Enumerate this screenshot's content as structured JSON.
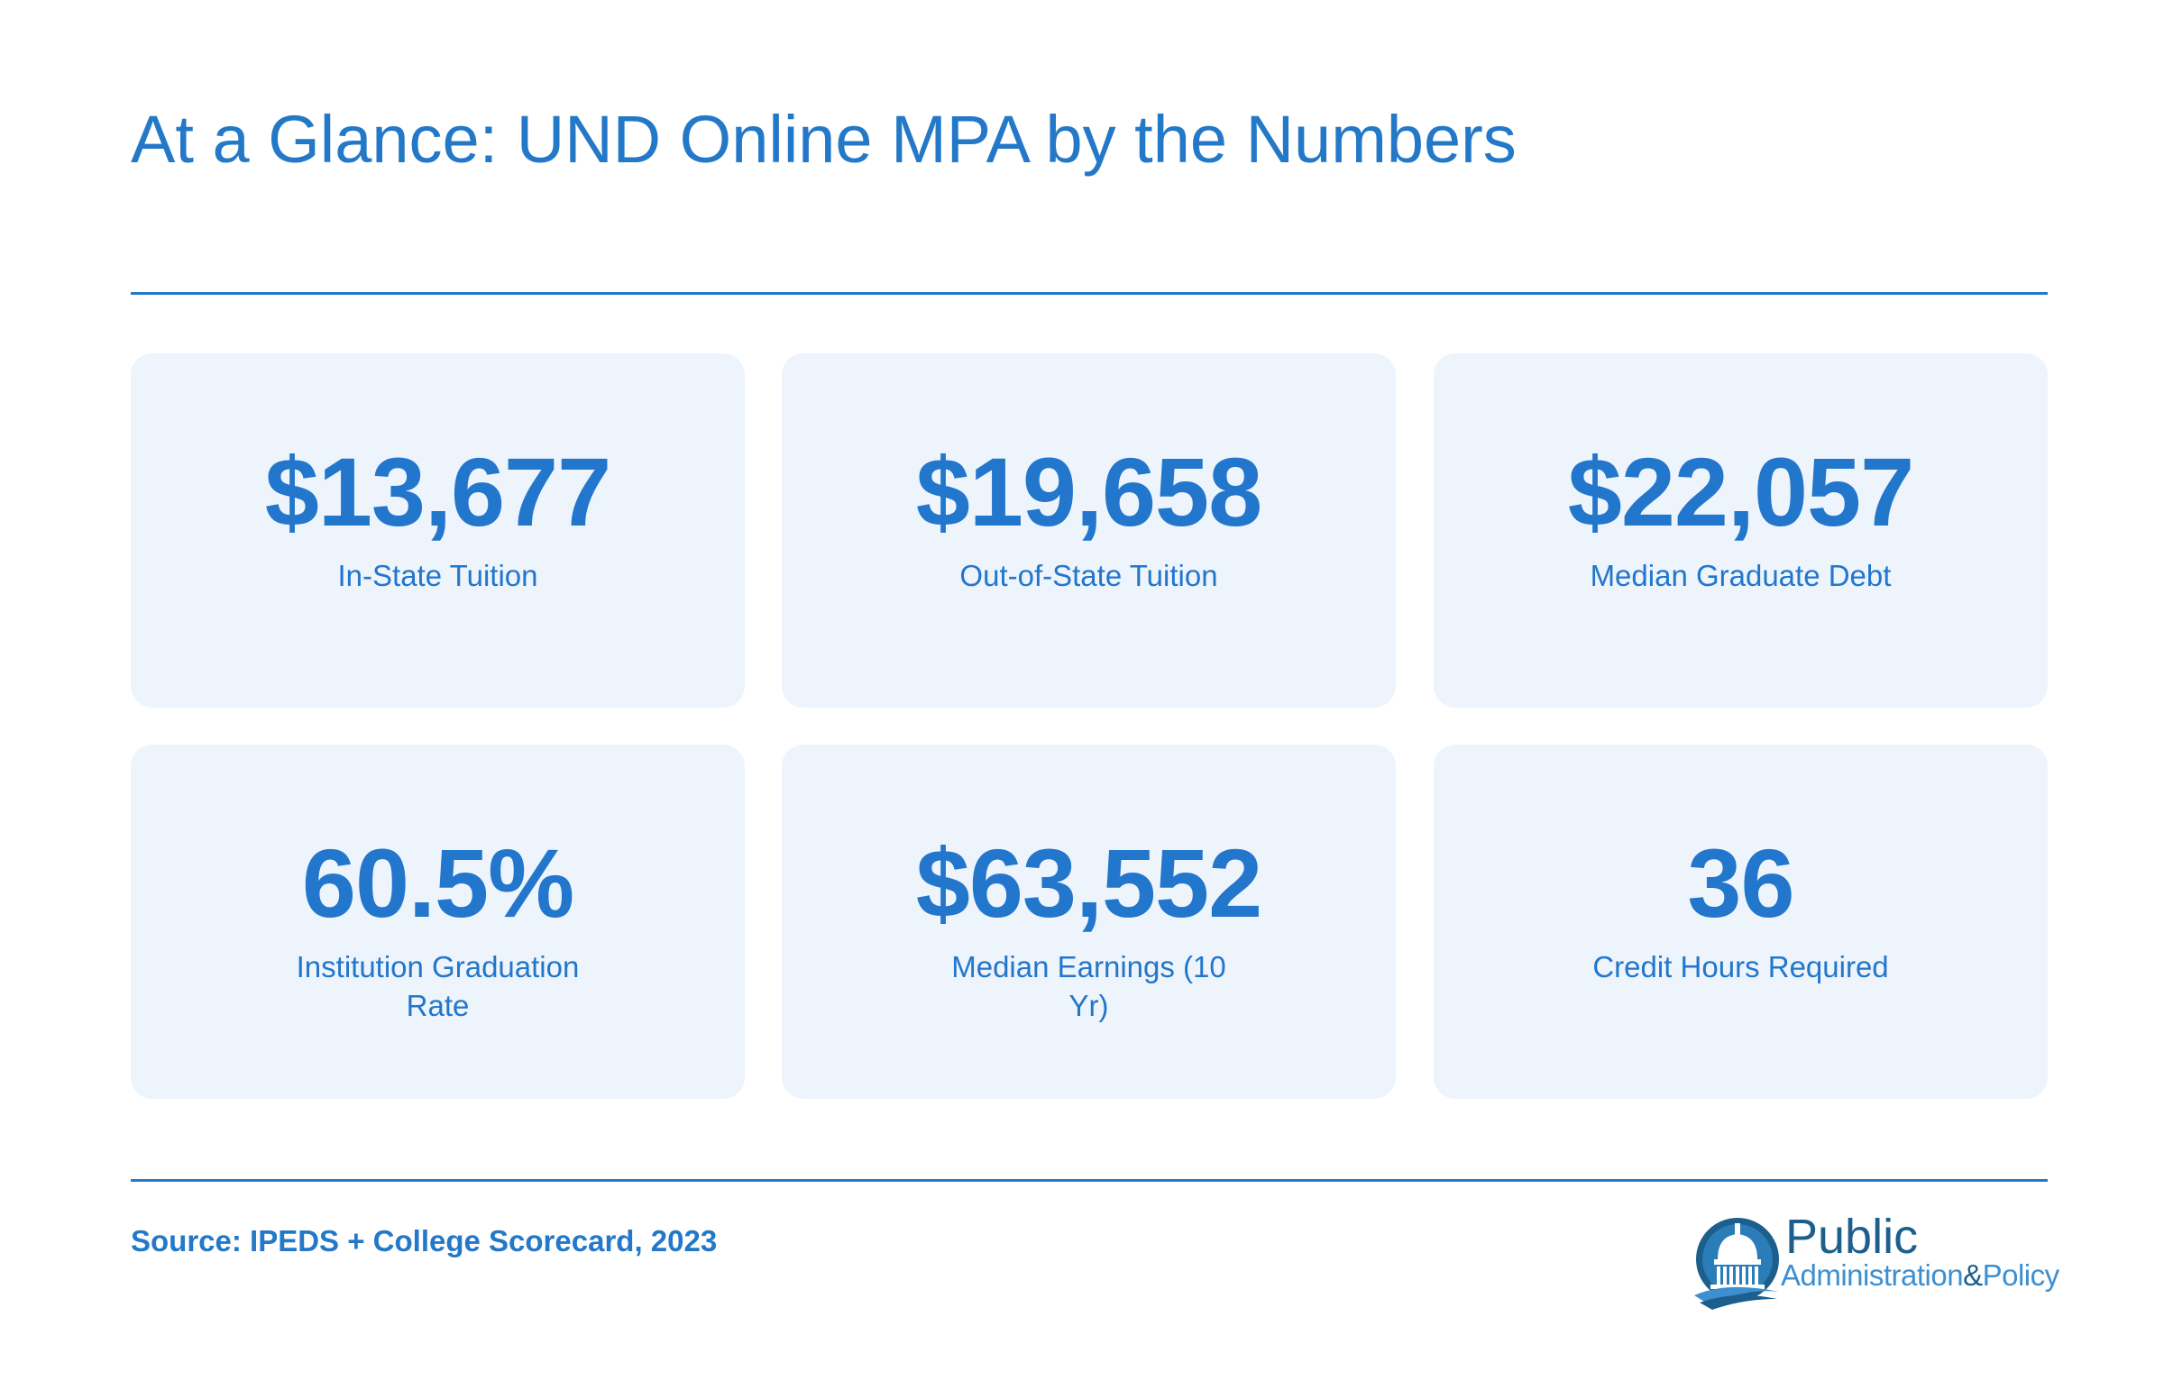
{
  "header": {
    "title": "At a Glance: UND Online MPA by the Numbers"
  },
  "stats": [
    {
      "value": "$13,677",
      "label": "In-State Tuition"
    },
    {
      "value": "$19,658",
      "label": "Out-of-State Tuition"
    },
    {
      "value": "$22,057",
      "label": "Median Graduate Debt"
    },
    {
      "value": "60.5%",
      "label": "Institution Graduation Rate"
    },
    {
      "value": "$63,552",
      "label": "Median Earnings (10 Yr)"
    },
    {
      "value": "36",
      "label": "Credit Hours Required"
    }
  ],
  "footer": {
    "source": "Source: IPEDS + College Scorecard, 2023",
    "logo": {
      "word_public": "Public",
      "word_admin": "Administration",
      "word_amp": "&",
      "word_policy": "Policy",
      "icon": "capitol-dome-icon"
    }
  },
  "colors": {
    "accent": "#2478c8",
    "card_bg": "#edf4fc",
    "logo_dark": "#1d5f8c"
  }
}
